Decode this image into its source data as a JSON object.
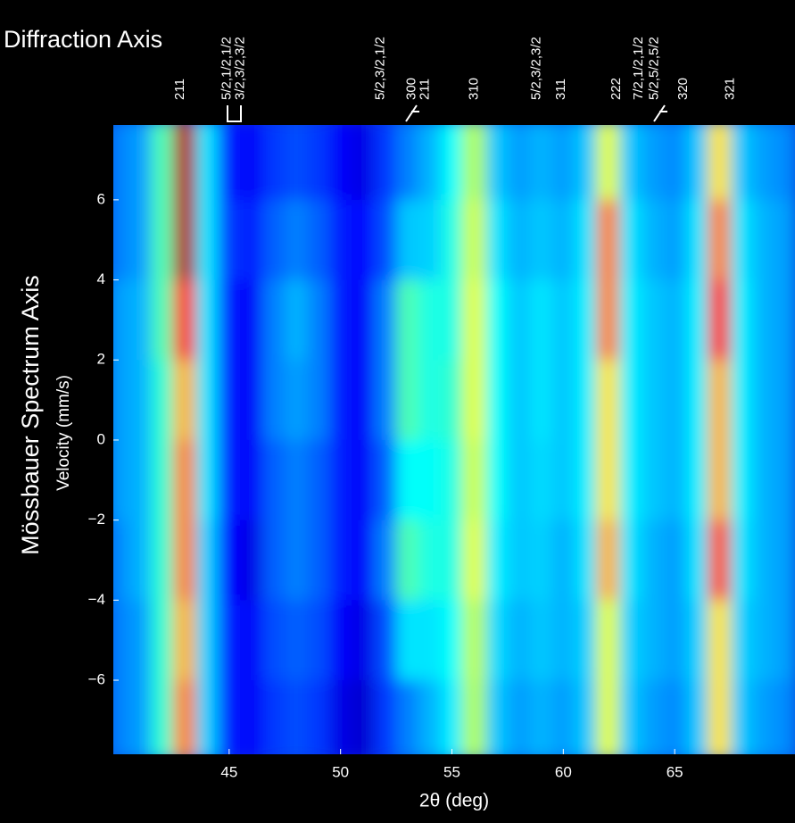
{
  "chart_data": {
    "type": "heatmap",
    "title": "Diffraction Axis",
    "y_axis_title": "Mössbauer Spectrum Axis",
    "y_label": "Velocity (mm/s)",
    "x_label": "2θ (deg)",
    "x": [
      40,
      41,
      42,
      43,
      44,
      45,
      46,
      47,
      48,
      49,
      50,
      51,
      52,
      53,
      54,
      55,
      56,
      57,
      58,
      59,
      60,
      61,
      62,
      63,
      64,
      65,
      66,
      67,
      68,
      69,
      70
    ],
    "y": [
      7,
      5,
      3,
      1,
      -1,
      -3,
      -5,
      -7
    ],
    "z": [
      [
        0.25,
        0.28,
        0.45,
        0.95,
        0.35,
        0.15,
        0.12,
        0.18,
        0.2,
        0.18,
        0.12,
        0.1,
        0.18,
        0.25,
        0.3,
        0.38,
        0.55,
        0.32,
        0.28,
        0.3,
        0.28,
        0.32,
        0.6,
        0.32,
        0.28,
        0.26,
        0.32,
        0.65,
        0.32,
        0.28,
        0.26
      ],
      [
        0.25,
        0.28,
        0.45,
        0.95,
        0.35,
        0.18,
        0.15,
        0.22,
        0.25,
        0.22,
        0.15,
        0.13,
        0.2,
        0.32,
        0.33,
        0.4,
        0.58,
        0.35,
        0.3,
        0.32,
        0.3,
        0.35,
        0.75,
        0.35,
        0.3,
        0.28,
        0.35,
        0.75,
        0.35,
        0.3,
        0.28
      ],
      [
        0.28,
        0.3,
        0.45,
        0.85,
        0.35,
        0.15,
        0.12,
        0.25,
        0.3,
        0.25,
        0.15,
        0.12,
        0.25,
        0.45,
        0.4,
        0.4,
        0.6,
        0.38,
        0.32,
        0.35,
        0.32,
        0.36,
        0.75,
        0.36,
        0.32,
        0.3,
        0.36,
        0.85,
        0.36,
        0.3,
        0.28
      ],
      [
        0.28,
        0.3,
        0.42,
        0.7,
        0.35,
        0.15,
        0.12,
        0.25,
        0.28,
        0.25,
        0.15,
        0.12,
        0.25,
        0.45,
        0.4,
        0.42,
        0.6,
        0.38,
        0.32,
        0.35,
        0.32,
        0.36,
        0.65,
        0.36,
        0.32,
        0.3,
        0.36,
        0.7,
        0.36,
        0.3,
        0.28
      ],
      [
        0.28,
        0.3,
        0.42,
        0.75,
        0.35,
        0.15,
        0.12,
        0.22,
        0.25,
        0.22,
        0.15,
        0.12,
        0.22,
        0.38,
        0.38,
        0.4,
        0.58,
        0.38,
        0.32,
        0.34,
        0.32,
        0.36,
        0.65,
        0.36,
        0.32,
        0.3,
        0.36,
        0.7,
        0.36,
        0.3,
        0.28
      ],
      [
        0.26,
        0.3,
        0.42,
        0.75,
        0.33,
        0.13,
        0.1,
        0.22,
        0.25,
        0.22,
        0.15,
        0.12,
        0.25,
        0.45,
        0.4,
        0.4,
        0.6,
        0.36,
        0.32,
        0.33,
        0.3,
        0.35,
        0.7,
        0.35,
        0.3,
        0.28,
        0.35,
        0.8,
        0.35,
        0.3,
        0.28
      ],
      [
        0.25,
        0.28,
        0.42,
        0.7,
        0.33,
        0.15,
        0.12,
        0.2,
        0.22,
        0.2,
        0.12,
        0.1,
        0.2,
        0.35,
        0.35,
        0.38,
        0.56,
        0.34,
        0.3,
        0.32,
        0.3,
        0.33,
        0.6,
        0.33,
        0.3,
        0.28,
        0.33,
        0.65,
        0.33,
        0.3,
        0.28
      ],
      [
        0.25,
        0.28,
        0.42,
        0.75,
        0.33,
        0.15,
        0.12,
        0.18,
        0.2,
        0.18,
        0.1,
        0.08,
        0.18,
        0.25,
        0.3,
        0.36,
        0.55,
        0.32,
        0.28,
        0.3,
        0.28,
        0.32,
        0.6,
        0.32,
        0.28,
        0.26,
        0.32,
        0.65,
        0.32,
        0.28,
        0.26
      ]
    ],
    "xlim": [
      39.8,
      70.4
    ],
    "ylim": [
      -7.85,
      7.87
    ],
    "xticks": [
      45,
      50,
      55,
      60,
      65
    ],
    "yticks": [
      {
        "value": -6,
        "label": "−6"
      },
      {
        "value": -4,
        "label": "−4"
      },
      {
        "value": -2,
        "label": "−2"
      },
      0,
      2,
      4,
      6
    ],
    "annotations": [
      {
        "x": 42.8,
        "text": "211"
      },
      {
        "x": 44.9,
        "text": "5/2,1/2,1/2"
      },
      {
        "x": 45.5,
        "text": "3/2,3/2,3/2"
      },
      {
        "x": 51.8,
        "text": "5/2,3/2,1/2"
      },
      {
        "x": 53.2,
        "text": "300"
      },
      {
        "x": 53.8,
        "text": "211"
      },
      {
        "x": 56.0,
        "text": "310"
      },
      {
        "x": 58.8,
        "text": "5/2,3/2,3/2"
      },
      {
        "x": 59.9,
        "text": "311"
      },
      {
        "x": 62.4,
        "text": "222"
      },
      {
        "x": 63.4,
        "text": "7/2,1/2,1/2"
      },
      {
        "x": 64.1,
        "text": "5/2,5/2,5/2"
      },
      {
        "x": 65.4,
        "text": "320"
      },
      {
        "x": 67.5,
        "text": "321"
      }
    ]
  }
}
